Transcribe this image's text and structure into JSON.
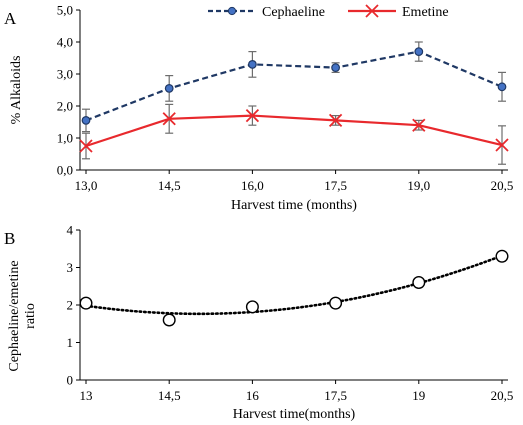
{
  "chart_data": [
    {
      "type": "line",
      "panel_label": "A",
      "x": [
        13.0,
        14.5,
        16.0,
        17.5,
        19.0,
        20.5
      ],
      "xticks": [
        "13,0",
        "14,5",
        "16,0",
        "17,5",
        "19,0",
        "20,5"
      ],
      "yticks": [
        "0,0",
        "1,0",
        "2,0",
        "3,0",
        "4,0",
        "5,0"
      ],
      "ylim": [
        0,
        5
      ],
      "xlabel": "Harvest time (months)",
      "ylabel": "% Alkaloids",
      "grid": false,
      "legend_position": "top",
      "series": [
        {
          "name": "Cephaeline",
          "color": "#1f3864",
          "marker": "circle",
          "line_style": "dashed",
          "values": [
            1.55,
            2.55,
            3.3,
            3.2,
            3.7,
            2.6
          ],
          "errors": [
            0.35,
            0.4,
            0.4,
            0.15,
            0.3,
            0.45
          ]
        },
        {
          "name": "Emetine",
          "color": "#e8292d",
          "marker": "x",
          "line_style": "solid",
          "values": [
            0.75,
            1.6,
            1.7,
            1.55,
            1.4,
            0.78
          ],
          "errors": [
            0.4,
            0.45,
            0.3,
            0.15,
            0.15,
            0.6
          ]
        }
      ]
    },
    {
      "type": "scatter",
      "panel_label": "B",
      "x": [
        13,
        14.5,
        16,
        17.5,
        19,
        20.5
      ],
      "xticks": [
        "13",
        "14,5",
        "16",
        "17,5",
        "19",
        "20,5"
      ],
      "yticks": [
        "0",
        "1",
        "2",
        "3",
        "4"
      ],
      "ylim": [
        0,
        4
      ],
      "xlabel": "Harvest time(months)",
      "ylabel": "Cephaeline/emetine ratio",
      "ylabel_lines": [
        "Cephaeline/emetine",
        "ratio"
      ],
      "grid": false,
      "trendline": "polynomial (dotted)",
      "series": [
        {
          "values": [
            2.05,
            1.6,
            1.95,
            2.05,
            2.6,
            3.3
          ]
        }
      ]
    }
  ]
}
